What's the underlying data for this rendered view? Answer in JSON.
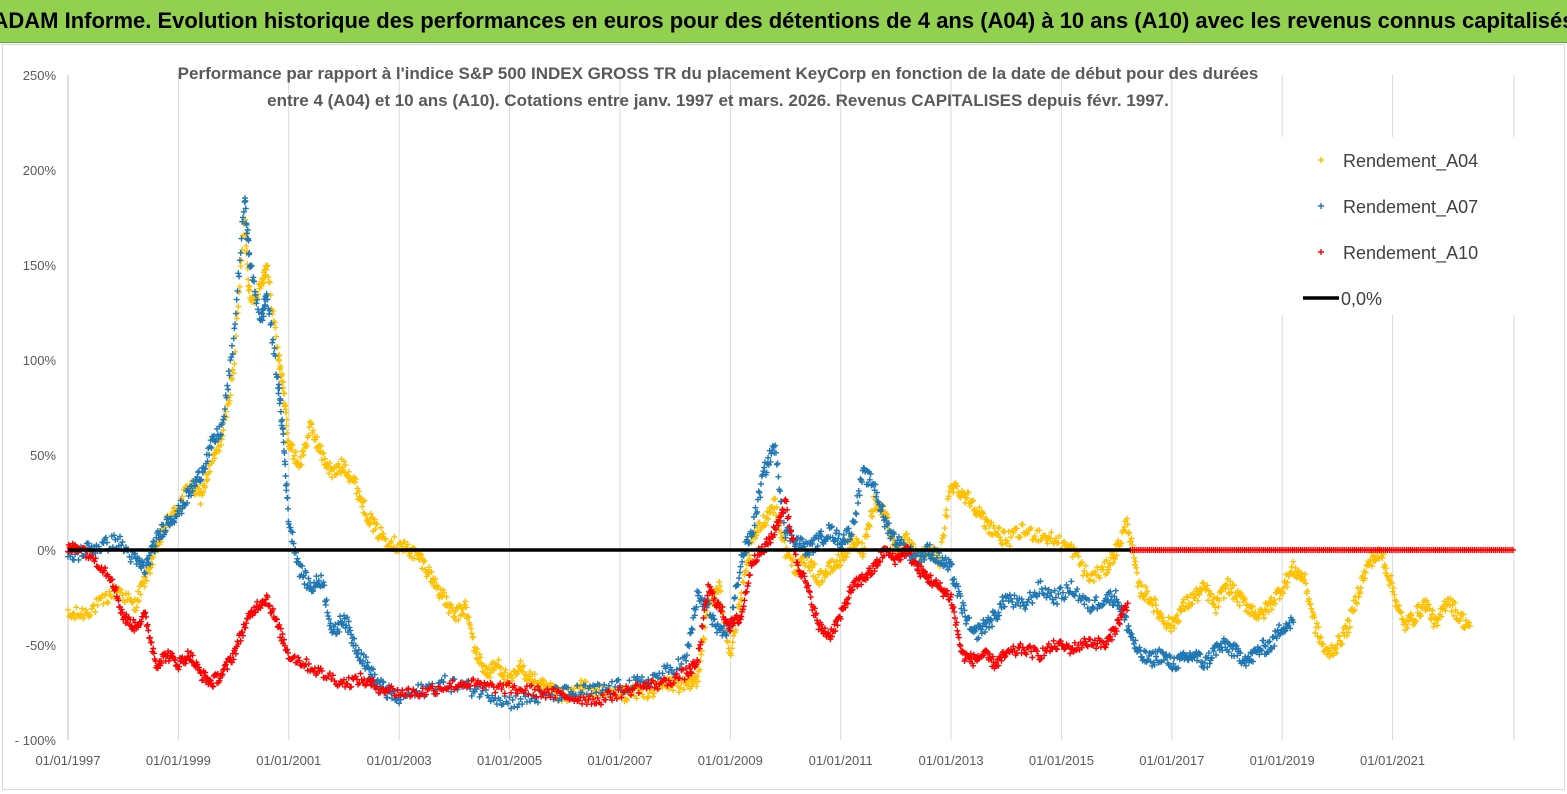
{
  "header": {
    "title": "ADAM Informe. Evolution historique des performances en euros pour des détentions de 4 ans (A04) à 10 ans (A10) avec les revenus connus capitalisés"
  },
  "colors": {
    "banner": "#92d050",
    "a04": "#ffc000",
    "a07": "#1f77b4",
    "a10": "#ff0000",
    "zero": "#000000",
    "grid": "#d9d9d9"
  },
  "chart_data": {
    "type": "scatter",
    "title_lines": [
      "Performance par rapport à l'indice S&P 500 INDEX GROSS TR  du placement KeyCorp en fonction de la date de début pour des durées",
      "entre 4 (A04) et 10 ans (A10).  Cotations entre janv. 1997 et mars. 2026. Revenus CAPITALISES depuis févr. 1997."
    ],
    "x_ticks": [
      "01/01/1997",
      "01/01/1999",
      "01/01/2001",
      "01/01/2003",
      "01/01/2005",
      "01/01/2007",
      "01/01/2009",
      "01/01/2011",
      "01/01/2013",
      "01/01/2015",
      "01/01/2017",
      "01/01/2019",
      "01/01/2021"
    ],
    "x_range": [
      1997.0,
      2023.2
    ],
    "y_ticks": [
      "250%",
      "200%",
      "150%",
      "100%",
      "50%",
      "0%",
      "-50%",
      "- 100%"
    ],
    "y_tick_values": [
      250,
      200,
      150,
      100,
      50,
      0,
      -50,
      -100
    ],
    "ylim": [
      -100,
      250
    ],
    "y_unit": "%",
    "grid": "vertical",
    "legend_position": "top-right",
    "legend": [
      {
        "label": "Rendement_A04",
        "key": "a04"
      },
      {
        "label": "Rendement_A07",
        "key": "a07"
      },
      {
        "label": "Rendement_A10",
        "key": "a10"
      },
      {
        "label": "0,0%",
        "key": "zero"
      }
    ],
    "series": [
      {
        "name": "Rendement_A04",
        "key": "a04",
        "x": [
          1997.0,
          1997.3,
          1997.6,
          1997.9,
          1998.2,
          1998.4,
          1998.6,
          1998.8,
          1999.0,
          1999.2,
          1999.4,
          1999.6,
          1999.8,
          2000.0,
          2000.2,
          2000.3,
          2000.5,
          2000.6,
          2000.8,
          2000.9,
          2001.0,
          2001.2,
          2001.4,
          2001.6,
          2001.8,
          2002.0,
          2002.2,
          2002.4,
          2002.6,
          2002.8,
          2003.0,
          2003.2,
          2003.4,
          2003.6,
          2003.8,
          2004.0,
          2004.2,
          2004.4,
          2004.6,
          2004.8,
          2005.0,
          2005.2,
          2005.4,
          2005.6,
          2005.8,
          2006.0,
          2006.3,
          2006.6,
          2007.0,
          2007.3,
          2007.6,
          2007.9,
          2008.2,
          2008.4,
          2008.6,
          2008.8,
          2009.0,
          2009.2,
          2009.4,
          2009.6,
          2009.8,
          2010.0,
          2010.2,
          2010.4,
          2010.6,
          2010.8,
          2011.0,
          2011.2,
          2011.4,
          2011.6,
          2011.8,
          2012.0,
          2012.2,
          2012.4,
          2012.6,
          2012.8,
          2013.0,
          2013.2,
          2013.4,
          2013.6,
          2013.8,
          2014.0,
          2014.3,
          2014.6,
          2014.9,
          2015.2,
          2015.5,
          2015.8,
          2016.0,
          2016.2,
          2016.4,
          2016.6,
          2016.8,
          2017.0,
          2017.2,
          2017.4,
          2017.6,
          2017.8,
          2018.0,
          2018.2,
          2018.4,
          2018.6,
          2018.8,
          2019.0,
          2019.2,
          2019.4,
          2019.6,
          2019.8,
          2020.0,
          2020.2,
          2020.4,
          2020.6,
          2020.8,
          2021.0,
          2021.2,
          2021.4,
          2021.6,
          2021.8,
          2022.0,
          2022.2,
          2022.4
        ],
        "y": [
          -35,
          -33,
          -28,
          -20,
          -30,
          -15,
          0,
          15,
          22,
          35,
          28,
          45,
          60,
          95,
          175,
          130,
          140,
          150,
          105,
          85,
          55,
          45,
          65,
          50,
          40,
          45,
          35,
          20,
          10,
          5,
          2,
          0,
          -5,
          -15,
          -25,
          -35,
          -30,
          -55,
          -65,
          -60,
          -70,
          -62,
          -68,
          -72,
          -75,
          -78,
          -72,
          -75,
          -76,
          -75,
          -74,
          -70,
          -72,
          -68,
          -30,
          -20,
          -55,
          -25,
          5,
          15,
          25,
          0,
          -10,
          -5,
          -15,
          -10,
          -5,
          5,
          0,
          25,
          20,
          0,
          5,
          -5,
          0,
          -5,
          35,
          30,
          25,
          15,
          10,
          5,
          10,
          8,
          5,
          0,
          -15,
          -10,
          0,
          15,
          -20,
          -25,
          -35,
          -40,
          -30,
          -25,
          -20,
          -30,
          -18,
          -25,
          -30,
          -35,
          -28,
          -20,
          -10,
          -15,
          -40,
          -55,
          -50,
          -40,
          -20,
          -5,
          -2,
          -20,
          -40,
          -35,
          -28,
          -40,
          -25,
          -35,
          -40
        ],
        "amp": 4
      },
      {
        "name": "Rendement_A07",
        "key": "a07",
        "x": [
          1997.0,
          1997.3,
          1997.6,
          1997.9,
          1998.2,
          1998.4,
          1998.6,
          1998.8,
          1999.0,
          1999.2,
          1999.4,
          1999.6,
          1999.8,
          2000.0,
          2000.2,
          2000.3,
          2000.5,
          2000.6,
          2000.8,
          2000.9,
          2001.0,
          2001.2,
          2001.4,
          2001.6,
          2001.8,
          2002.0,
          2002.2,
          2002.4,
          2002.6,
          2002.8,
          2003.0,
          2003.4,
          2003.8,
          2004.2,
          2004.6,
          2005.0,
          2005.4,
          2005.8,
          2006.2,
          2006.6,
          2007.0,
          2007.4,
          2007.8,
          2008.2,
          2008.4,
          2008.6,
          2008.8,
          2009.0,
          2009.2,
          2009.4,
          2009.6,
          2009.8,
          2010.0,
          2010.2,
          2010.4,
          2010.6,
          2010.8,
          2011.0,
          2011.2,
          2011.4,
          2011.6,
          2011.8,
          2012.0,
          2012.2,
          2012.4,
          2012.6,
          2012.8,
          2013.0,
          2013.2,
          2013.4,
          2013.6,
          2013.8,
          2014.0,
          2014.3,
          2014.6,
          2014.9,
          2015.2,
          2015.5,
          2015.8,
          2016.0,
          2016.2,
          2016.4,
          2016.6,
          2016.8,
          2017.0,
          2017.2,
          2017.4,
          2017.6,
          2017.8,
          2018.0,
          2018.2,
          2018.4,
          2018.6,
          2018.8,
          2019.0,
          2019.2
        ],
        "y": [
          -5,
          0,
          2,
          5,
          -5,
          -10,
          5,
          15,
          20,
          30,
          40,
          55,
          65,
          110,
          185,
          150,
          120,
          135,
          90,
          60,
          15,
          -10,
          -20,
          -15,
          -45,
          -35,
          -50,
          -60,
          -70,
          -75,
          -78,
          -74,
          -70,
          -72,
          -75,
          -80,
          -78,
          -76,
          -75,
          -74,
          -72,
          -70,
          -65,
          -58,
          -25,
          -30,
          -45,
          -40,
          -5,
          10,
          40,
          55,
          10,
          5,
          0,
          5,
          10,
          5,
          10,
          40,
          35,
          15,
          5,
          0,
          -5,
          0,
          -5,
          -10,
          -30,
          -45,
          -40,
          -35,
          -25,
          -30,
          -20,
          -25,
          -20,
          -30,
          -25,
          -25,
          -40,
          -55,
          -58,
          -55,
          -60,
          -58,
          -55,
          -60,
          -52,
          -50,
          -55,
          -58,
          -52,
          -50,
          -40,
          -38
        ],
        "amp": 4
      },
      {
        "name": "Rendement_A10",
        "key": "a10",
        "x": [
          1997.0,
          1997.2,
          1997.5,
          1997.8,
          1998.0,
          1998.2,
          1998.4,
          1998.6,
          1998.8,
          1999.0,
          1999.2,
          1999.4,
          1999.6,
          1999.8,
          2000.0,
          2000.2,
          2000.4,
          2000.6,
          2000.8,
          2001.0,
          2001.3,
          2001.6,
          2002.0,
          2002.3,
          2002.6,
          2003.0,
          2003.4,
          2003.8,
          2004.2,
          2004.6,
          2005.0,
          2005.4,
          2005.8,
          2006.2,
          2006.6,
          2007.0,
          2007.4,
          2007.8,
          2008.2,
          2008.4,
          2008.6,
          2008.8,
          2009.0,
          2009.2,
          2009.4,
          2009.6,
          2009.8,
          2010.0,
          2010.2,
          2010.4,
          2010.6,
          2010.8,
          2011.0,
          2011.2,
          2011.4,
          2011.6,
          2011.8,
          2012.0,
          2012.2,
          2012.4,
          2012.6,
          2012.8,
          2013.0,
          2013.2,
          2013.4,
          2013.6,
          2013.8,
          2014.0,
          2014.3,
          2014.6,
          2014.9,
          2015.2,
          2015.5,
          2015.8,
          2016.0,
          2016.2
        ],
        "y": [
          0,
          2,
          -5,
          -15,
          -35,
          -40,
          -35,
          -60,
          -55,
          -60,
          -55,
          -65,
          -70,
          -65,
          -55,
          -40,
          -30,
          -25,
          -40,
          -55,
          -60,
          -65,
          -70,
          -68,
          -72,
          -75,
          -75,
          -72,
          -70,
          -72,
          -73,
          -74,
          -76,
          -78,
          -79,
          -75,
          -72,
          -70,
          -65,
          -60,
          -20,
          -30,
          -40,
          -35,
          -5,
          0,
          10,
          25,
          -5,
          -20,
          -40,
          -45,
          -35,
          -20,
          -15,
          -10,
          0,
          -5,
          0,
          -10,
          -15,
          -20,
          -25,
          -55,
          -58,
          -55,
          -60,
          -55,
          -52,
          -55,
          -50,
          -52,
          -48,
          -50,
          -40,
          -28
        ],
        "amp": 3
      }
    ],
    "zero_line": {
      "label": "0,0%",
      "value": 0
    },
    "a10_flat_zero_from": 2016.25,
    "x_end": 2023.2
  }
}
